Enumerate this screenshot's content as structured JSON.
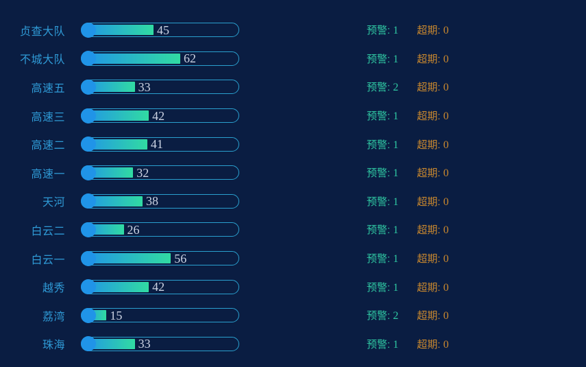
{
  "chart_data": {
    "type": "bar",
    "orientation": "horizontal",
    "title": "",
    "categories": [
      "贞查大队",
      "不城大队",
      "高速五",
      "高速三",
      "高速二",
      "高速一",
      "天河",
      "白云二",
      "白云一",
      "越秀",
      "荔湾",
      "珠海"
    ],
    "series": [
      {
        "name": "value",
        "values": [
          45,
          62,
          33,
          42,
          41,
          32,
          38,
          26,
          56,
          42,
          15,
          33
        ]
      },
      {
        "name": "预警",
        "values": [
          1,
          1,
          2,
          1,
          1,
          1,
          1,
          1,
          1,
          1,
          2,
          1
        ]
      },
      {
        "name": "超期",
        "values": [
          0,
          0,
          0,
          0,
          0,
          0,
          0,
          0,
          0,
          0,
          0,
          0
        ]
      }
    ],
    "xlim": [
      0,
      100
    ],
    "grid": false,
    "legend": false
  },
  "labels": {
    "warning": "预警",
    "overdue": "超期",
    "separator": ": "
  },
  "colors": {
    "background": "#0a1d42",
    "category": "#2f9ad6",
    "capsule_border": "#2aa0cf",
    "bar_gradient_start": "#2094e8",
    "bar_gradient_end": "#31dba2",
    "cap_dot": "#2094e8",
    "value_text": "#ccd3e3",
    "warning_text": "#2fc7a2",
    "overdue_text": "#c9882e"
  },
  "rows": [
    {
      "label": "贞查大队",
      "value": 45,
      "warning": 1,
      "overdue": 0
    },
    {
      "label": "不城大队",
      "value": 62,
      "warning": 1,
      "overdue": 0
    },
    {
      "label": "高速五",
      "value": 33,
      "warning": 2,
      "overdue": 0
    },
    {
      "label": "高速三",
      "value": 42,
      "warning": 1,
      "overdue": 0
    },
    {
      "label": "高速二",
      "value": 41,
      "warning": 1,
      "overdue": 0
    },
    {
      "label": "高速一",
      "value": 32,
      "warning": 1,
      "overdue": 0
    },
    {
      "label": "天河",
      "value": 38,
      "warning": 1,
      "overdue": 0
    },
    {
      "label": "白云二",
      "value": 26,
      "warning": 1,
      "overdue": 0
    },
    {
      "label": "白云一",
      "value": 56,
      "warning": 1,
      "overdue": 0
    },
    {
      "label": "越秀",
      "value": 42,
      "warning": 1,
      "overdue": 0
    },
    {
      "label": "荔湾",
      "value": 15,
      "warning": 2,
      "overdue": 0
    },
    {
      "label": "珠海",
      "value": 33,
      "warning": 1,
      "overdue": 0
    }
  ]
}
